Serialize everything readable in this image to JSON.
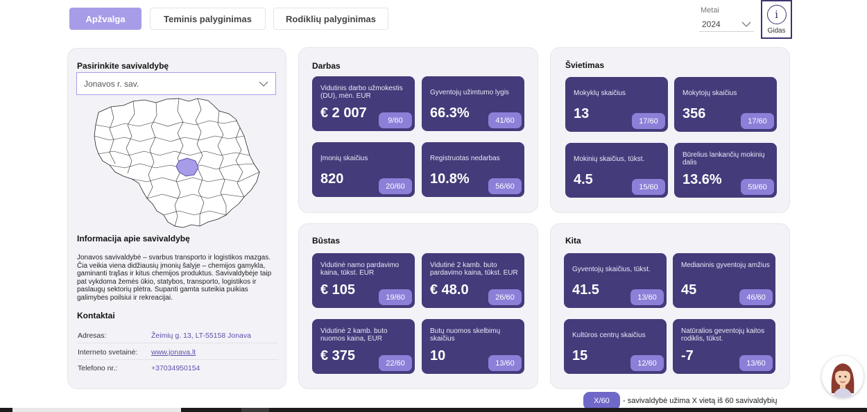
{
  "tabs": [
    {
      "label": "Apžvalga",
      "active": true
    },
    {
      "label": "Teminis palyginimas",
      "active": false
    },
    {
      "label": "Rodiklių palyginimas",
      "active": false
    }
  ],
  "year": {
    "label": "Metai",
    "value": "2024"
  },
  "guide": {
    "label": "Gidas",
    "icon": "info-icon"
  },
  "left": {
    "select_title": "Pasirinkite savivaldybę",
    "selected": "Jonavos r. sav.",
    "info_title": "Informacija apie savivaldybę",
    "info_text": "Jonavos savivaldybė – svarbus transporto ir logistikos mazgas. Čia veikia viena didžiausių įmonių šalyje – chemijos gamykla, gaminanti trąšas ir kitus chemijos produktus. Savivaldybėje taip pat vykdoma žemės ūkio, statybos, transporto, logistikos ir paslaugų sektorių plėtra. Supanti gamta suteikia puikias galimybes poilsiui ir rekreacijai.",
    "contacts_title": "Kontaktai",
    "contacts": [
      {
        "key": "Adresas:",
        "value": "Žeimių g. 13, LT-55158 Jonava"
      },
      {
        "key": "Interneto svetainė:",
        "value": "www.jonava.lt"
      },
      {
        "key": "Telefono nr.:",
        "value": "+37034950154"
      }
    ]
  },
  "sections": {
    "darbas": {
      "title": "Darbas",
      "cards": [
        {
          "label": "Vidutinis darbo užmokestis (DU), mėn. EUR",
          "value": "€ 2 007",
          "rank": "9/60"
        },
        {
          "label": "Gyventojų užimtumo lygis",
          "value": "66.3%",
          "rank": "41/60"
        },
        {
          "label": "Įmonių skaičius",
          "value": "820",
          "rank": "20/60"
        },
        {
          "label": "Registruotas nedarbas",
          "value": "10.8%",
          "rank": "56/60"
        }
      ]
    },
    "svietimas": {
      "title": "Švietimas",
      "cards": [
        {
          "label": "Mokyklų skaičius",
          "value": "13",
          "rank": "17/60"
        },
        {
          "label": "Mokytojų skaičius",
          "value": "356",
          "rank": "17/60"
        },
        {
          "label": "Mokinių skaičius, tūkst.",
          "value": "4.5",
          "rank": "15/60"
        },
        {
          "label": "Būrelius lankančių mokinių dalis",
          "value": "13.6%",
          "rank": "59/60"
        }
      ]
    },
    "bustas": {
      "title": "Būstas",
      "cards": [
        {
          "label": "Vidutinė namo pardavimo kaina, tūkst. EUR",
          "value": "€ 105",
          "rank": "19/60"
        },
        {
          "label": "Vidutinė 2 kamb. buto pardavimo kaina, tūkst. EUR",
          "value": "€ 48.0",
          "rank": "26/60"
        },
        {
          "label": "Vidutinė 2 kamb. buto nuomos kaina, EUR",
          "value": "€ 375",
          "rank": "22/60"
        },
        {
          "label": "Butų nuomos skelbimų skaičius",
          "value": "10",
          "rank": "13/60"
        }
      ]
    },
    "kita": {
      "title": "Kita",
      "cards": [
        {
          "label": "Gyventojų skaičius, tūkst.",
          "value": "41.5",
          "rank": "13/60"
        },
        {
          "label": "Medianinis gyventojų amžius",
          "value": "45",
          "rank": "46/60"
        },
        {
          "label": "Kultūros centrų skaičius",
          "value": "15",
          "rank": "12/60"
        },
        {
          "label": "Natūralios geventojų kaitos rodiklis, tūkst.",
          "value": "-7",
          "rank": "13/60"
        }
      ]
    }
  },
  "legend": {
    "badge": "X/60",
    "text": "- savivaldybė užima X vietą iš 60 savivaldybių"
  },
  "colors": {
    "accent": "#a79ce8",
    "card": "#433b7a",
    "rank_badge": "#8b7fd8",
    "highlight": "#a79ce8"
  }
}
